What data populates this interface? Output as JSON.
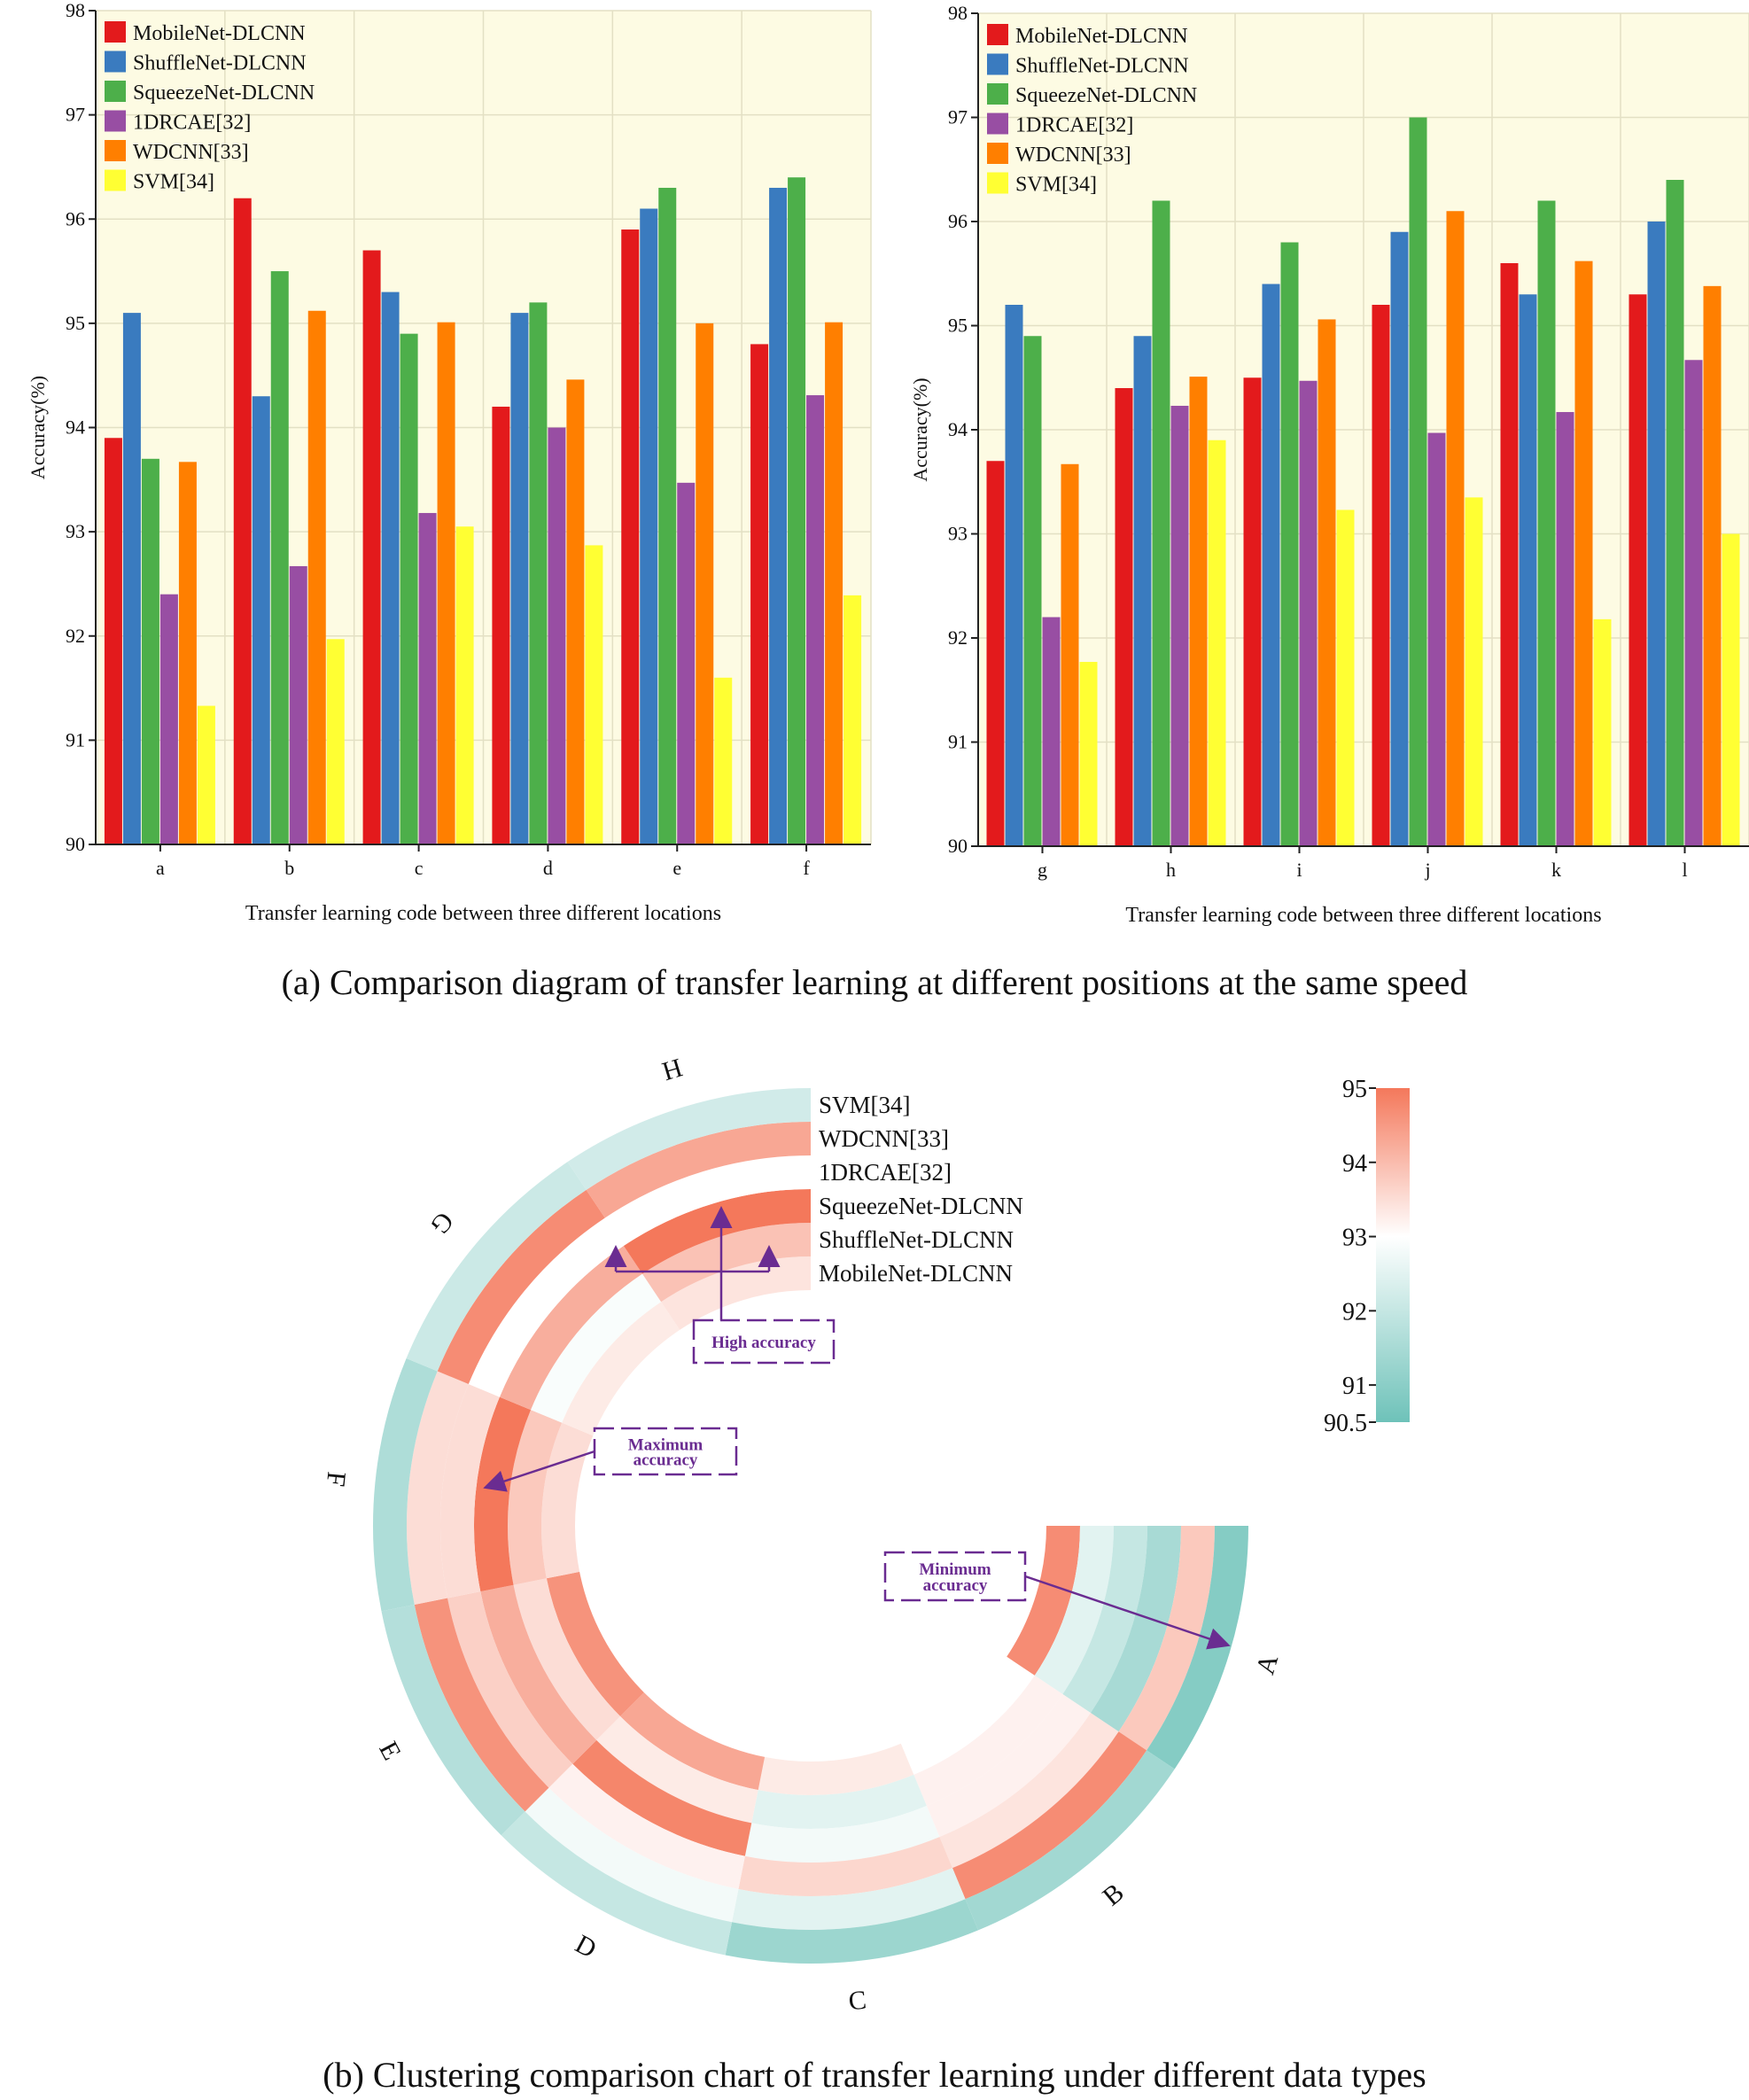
{
  "captions": {
    "a": "(a) Comparison diagram of transfer learning at different positions at the same speed",
    "b": "(b) Clustering comparison chart of transfer learning under different data types"
  },
  "chart_data": [
    {
      "type": "bar",
      "ylabel": "Accuracy(%)",
      "xlabel": "Transfer learning code between three different locations",
      "ylim": [
        90,
        98
      ],
      "yticks": [
        90,
        91,
        92,
        93,
        94,
        95,
        96,
        97,
        98
      ],
      "grid": true,
      "legend_position": "top-left",
      "background": "#fdfbe3",
      "categories": [
        "a",
        "b",
        "c",
        "d",
        "e",
        "f"
      ],
      "series": [
        {
          "name": "MobileNet-DLCNN",
          "color": "#e31a1c",
          "values": [
            93.9,
            96.2,
            95.7,
            94.2,
            95.9,
            94.8
          ]
        },
        {
          "name": "ShuffleNet-DLCNN",
          "color": "#3a7bbf",
          "values": [
            95.1,
            94.3,
            95.3,
            95.1,
            96.1,
            96.3
          ]
        },
        {
          "name": "SqueezeNet-DLCNN",
          "color": "#4daf4a",
          "values": [
            93.7,
            95.5,
            94.9,
            95.2,
            96.3,
            96.4
          ]
        },
        {
          "name": "1DRCAE[32]",
          "color": "#984ea3",
          "values": [
            92.4,
            92.67,
            93.18,
            94.0,
            93.47,
            94.31
          ]
        },
        {
          "name": "WDCNN[33]",
          "color": "#ff7f00",
          "values": [
            93.67,
            95.12,
            95.01,
            94.46,
            95.0,
            95.01
          ]
        },
        {
          "name": "SVM[34]",
          "color": "#ffff33",
          "values": [
            91.33,
            91.97,
            93.05,
            92.87,
            91.6,
            92.39
          ]
        }
      ]
    },
    {
      "type": "bar",
      "ylabel": "Accuracy(%)",
      "xlabel": "Transfer learning code between three different locations",
      "ylim": [
        90,
        98
      ],
      "yticks": [
        90,
        91,
        92,
        93,
        94,
        95,
        96,
        97,
        98
      ],
      "grid": true,
      "legend_position": "top-left",
      "background": "#fdfbe3",
      "categories": [
        "g",
        "h",
        "i",
        "j",
        "k",
        "l"
      ],
      "series": [
        {
          "name": "MobileNet-DLCNN",
          "color": "#e31a1c",
          "values": [
            93.7,
            94.4,
            94.5,
            95.2,
            95.6,
            95.3
          ]
        },
        {
          "name": "ShuffleNet-DLCNN",
          "color": "#3a7bbf",
          "values": [
            95.2,
            94.9,
            95.4,
            95.9,
            95.3,
            96.0
          ]
        },
        {
          "name": "SqueezeNet-DLCNN",
          "color": "#4daf4a",
          "values": [
            94.9,
            96.2,
            95.8,
            97.0,
            96.2,
            96.4
          ]
        },
        {
          "name": "1DRCAE[32]",
          "color": "#984ea3",
          "values": [
            92.2,
            94.23,
            94.47,
            93.97,
            94.17,
            94.67
          ]
        },
        {
          "name": "WDCNN[33]",
          "color": "#ff7f00",
          "values": [
            93.67,
            94.51,
            95.06,
            96.1,
            95.62,
            95.38
          ]
        },
        {
          "name": "SVM[34]",
          "color": "#ffff33",
          "values": [
            91.77,
            93.9,
            93.23,
            93.35,
            92.18,
            93.0
          ]
        }
      ]
    },
    {
      "type": "heatmap",
      "form": "circular",
      "sectors": [
        "A",
        "B",
        "C",
        "D",
        "E",
        "F",
        "G",
        "H"
      ],
      "rings": [
        "MobileNet-DLCNN",
        "ShuffleNet-DLCNN",
        "SqueezeNet-DLCNN",
        "1DRCAE[32]",
        "WDCNN[33]",
        "SVM[34]"
      ],
      "values": [
        [
          94.7,
          93.0,
          93.3,
          94.3,
          94.6,
          93.5,
          93.3,
          93.4
        ],
        [
          92.5,
          93.2,
          92.5,
          93.3,
          93.5,
          93.8,
          92.9,
          93.9
        ],
        [
          92.0,
          93.2,
          92.8,
          94.8,
          94.2,
          95.0,
          94.2,
          95.1
        ],
        [
          91.5,
          93.4,
          93.6,
          93.2,
          93.7,
          93.5,
          93.0,
          93.0
        ],
        [
          93.8,
          94.7,
          92.5,
          92.8,
          94.6,
          93.5,
          94.7,
          94.3
        ],
        [
          90.9,
          91.4,
          91.3,
          92.0,
          91.7,
          91.6,
          92.1,
          92.2
        ]
      ],
      "colorbar": {
        "min": 90.5,
        "max": 95,
        "ticks": [
          "95",
          "94",
          "93",
          "92",
          "91",
          "90.5"
        ],
        "colors": [
          "#6ec2b9",
          "#ffffff",
          "#f4785b"
        ]
      },
      "annotations": [
        "High accuracy",
        "Maximum accuracy",
        "Minimum accuracy"
      ]
    }
  ]
}
